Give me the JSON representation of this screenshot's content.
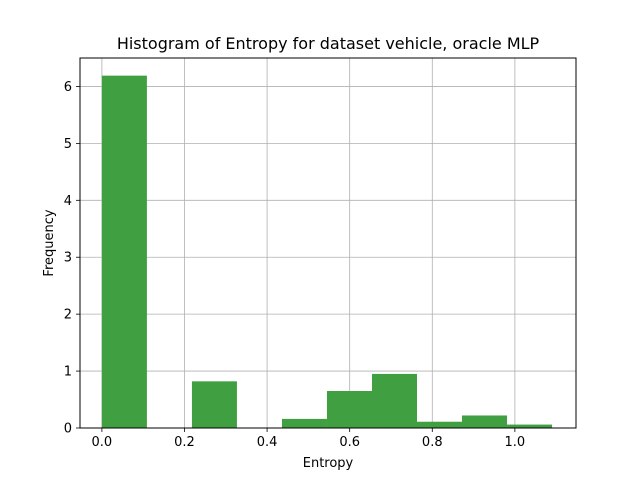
{
  "chart_data": {
    "type": "bar",
    "title": "Histogram of Entropy for dataset vehicle, oracle MLP",
    "xlabel": "Entropy",
    "ylabel": "Frequency",
    "xlim": [
      -0.053,
      1.148
    ],
    "ylim": [
      0,
      6.5
    ],
    "grid": true,
    "bar_color": "#409f40",
    "x_ticks": [
      "0.0",
      "0.2",
      "0.4",
      "0.6",
      "0.8",
      "1.0"
    ],
    "x_tick_values": [
      0.0,
      0.2,
      0.4,
      0.6,
      0.8,
      1.0
    ],
    "y_ticks": [
      "0",
      "1",
      "2",
      "3",
      "4",
      "5",
      "6"
    ],
    "y_tick_values": [
      0,
      1,
      2,
      3,
      4,
      5,
      6
    ],
    "bins": [
      {
        "x0": 0.0,
        "x1": 0.109,
        "value": 6.19
      },
      {
        "x0": 0.109,
        "x1": 0.218,
        "value": 0
      },
      {
        "x0": 0.218,
        "x1": 0.327,
        "value": 0.82
      },
      {
        "x0": 0.327,
        "x1": 0.436,
        "value": 0
      },
      {
        "x0": 0.436,
        "x1": 0.545,
        "value": 0.16
      },
      {
        "x0": 0.545,
        "x1": 0.654,
        "value": 0.65
      },
      {
        "x0": 0.654,
        "x1": 0.763,
        "value": 0.95
      },
      {
        "x0": 0.763,
        "x1": 0.872,
        "value": 0.11
      },
      {
        "x0": 0.872,
        "x1": 0.981,
        "value": 0.22
      },
      {
        "x0": 0.981,
        "x1": 1.09,
        "value": 0.06
      }
    ]
  }
}
